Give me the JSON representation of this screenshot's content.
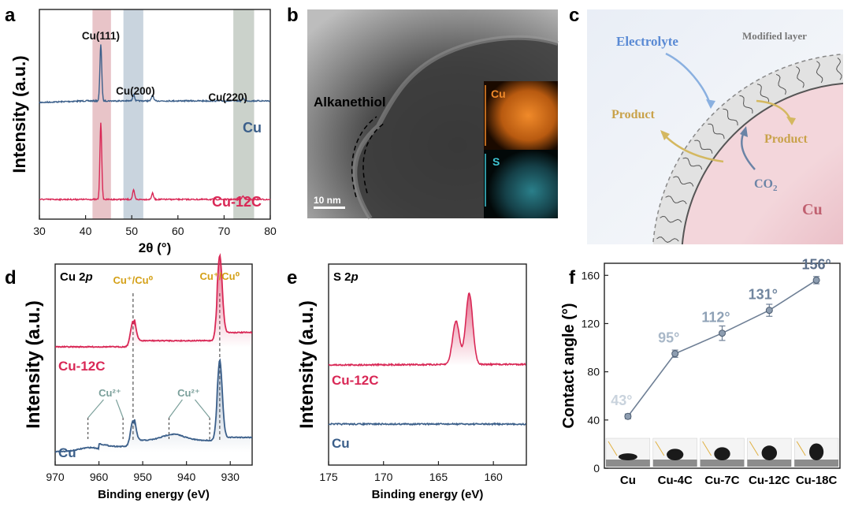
{
  "panels": {
    "a": "a",
    "b": "b",
    "c": "c",
    "d": "d",
    "e": "e",
    "f": "f"
  },
  "colors": {
    "cu": "#3b5f8a",
    "cu12c": "#d92856",
    "gold": "#d4a017",
    "grey_blue": "#8a9db5"
  },
  "chart_data": [
    {
      "panel": "a",
      "type": "line",
      "xlabel": "2θ (°)",
      "ylabel": "Intensity (a.u.)",
      "xlim": [
        30,
        80
      ],
      "xticks": [
        30,
        40,
        50,
        60,
        70,
        80
      ],
      "bands": [
        {
          "range": [
            41.5,
            45.5
          ],
          "color": "#e8c4c8"
        },
        {
          "range": [
            48.2,
            52.5
          ],
          "color": "#c9d4de"
        },
        {
          "range": [
            72,
            76.5
          ],
          "color": "#cbd2cb"
        }
      ],
      "annotations": [
        {
          "text": "Cu(111)",
          "x": 43.3
        },
        {
          "text": "Cu(200)",
          "x": 50.4
        },
        {
          "text": "Cu(220)",
          "x": 74.1
        }
      ],
      "series": [
        {
          "name": "Cu",
          "peaks": [
            [
              43.3,
              1.0
            ],
            [
              50.4,
              0.12
            ],
            [
              54.5,
              0.1
            ],
            [
              74.1,
              0.05
            ]
          ]
        },
        {
          "name": "Cu-12C",
          "peaks": [
            [
              43.3,
              1.0
            ],
            [
              50.4,
              0.12
            ],
            [
              54.5,
              0.08
            ],
            [
              74.1,
              0.05
            ]
          ]
        }
      ]
    },
    {
      "panel": "d",
      "type": "line",
      "title": "Cu 2p",
      "xlabel": "Binding energy (eV)",
      "ylabel": "Intensity (a.u.)",
      "xlim": [
        970,
        925
      ],
      "xticks": [
        970,
        960,
        950,
        940,
        930
      ],
      "annotations": [
        {
          "text": "Cu⁺/Cu⁰",
          "x": 952.2
        },
        {
          "text": "Cu⁺/Cu⁰",
          "x": 932.4
        },
        {
          "text": "Cu²⁺",
          "x": 957.5
        },
        {
          "text": "Cu²⁺",
          "x": 939.5
        }
      ],
      "series": [
        {
          "name": "Cu-12C",
          "peaks": [
            [
              952.2,
              0.25
            ],
            [
              932.4,
              0.75
            ]
          ]
        },
        {
          "name": "Cu",
          "peaks": [
            [
              952.2,
              0.25
            ],
            [
              932.4,
              0.75
            ],
            [
              962,
              0.04
            ],
            [
              943,
              0.06
            ]
          ]
        }
      ]
    },
    {
      "panel": "e",
      "type": "line",
      "title": "S 2p",
      "xlabel": "Binding energy (eV)",
      "ylabel": "Intensity (a.u.)",
      "xlim": [
        175,
        157
      ],
      "xticks": [
        175,
        170,
        165,
        160
      ],
      "series": [
        {
          "name": "Cu-12C",
          "peaks": [
            [
              163.4,
              0.55
            ],
            [
              162.2,
              0.9
            ]
          ]
        },
        {
          "name": "Cu",
          "peaks": []
        }
      ]
    },
    {
      "panel": "f",
      "type": "scatter",
      "ylabel": "Contact angle (°)",
      "ylim": [
        0,
        170
      ],
      "yticks": [
        0,
        40,
        80,
        120,
        160
      ],
      "categories": [
        "Cu",
        "Cu-4C",
        "Cu-7C",
        "Cu-12C",
        "Cu-18C"
      ],
      "values": [
        43,
        95,
        112,
        131,
        156
      ],
      "errors": [
        2,
        3,
        6,
        5,
        3
      ],
      "labels": [
        "43°",
        "95°",
        "112°",
        "131°",
        "156°"
      ],
      "label_colors": [
        "#c9d3dd",
        "#a9b8c8",
        "#8ea1b6",
        "#71869f",
        "#5a6e89"
      ]
    }
  ],
  "panel_b": {
    "label_alkanethiol": "Alkanethiol",
    "scale_bar": "10 nm",
    "map_cu": "Cu",
    "map_s": "S"
  },
  "panel_c": {
    "electrolyte": "Electrolyte",
    "modified_layer": "Modified layer",
    "product_left": "Product",
    "product_right": "Product",
    "co2_main": "CO",
    "co2_sub": "2",
    "cu": "Cu"
  }
}
